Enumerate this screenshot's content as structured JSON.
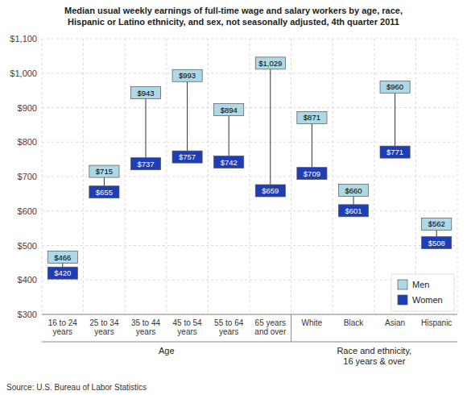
{
  "chart_data": {
    "type": "dumbbell",
    "title": "Median usual weekly earnings of full-time wage and salary workers by age, race,\nHispanic or Latino ethnicity, and sex, not seasonally adjusted, 4th quarter 2011",
    "categories": [
      "16 to 24\nyears",
      "25 to 34\nyears",
      "35 to 44\nyears",
      "45 to 54\nyears",
      "55 to 64\nyears",
      "65 years\nand over",
      "White",
      "Black",
      "Asian",
      "Hispanic"
    ],
    "groups": [
      {
        "label": "Age",
        "size": 6
      },
      {
        "label": "Race and ethnicity,\n16 years & over",
        "size": 4
      }
    ],
    "series": [
      {
        "name": "Men",
        "color": "#add8e6",
        "values": [
          466,
          715,
          943,
          993,
          894,
          1029,
          871,
          660,
          960,
          562
        ],
        "value_labels": [
          "$466",
          "$715",
          "$943",
          "$993",
          "$894",
          "$1,029",
          "$871",
          "$660",
          "$960",
          "$562"
        ]
      },
      {
        "name": "Women",
        "color": "#1f3db5",
        "values": [
          420,
          655,
          737,
          757,
          742,
          659,
          709,
          601,
          771,
          508
        ],
        "value_labels": [
          "$420",
          "$655",
          "$737",
          "$757",
          "$742",
          "$659",
          "$709",
          "$601",
          "$771",
          "$508"
        ]
      }
    ],
    "ylim": [
      300,
      1100
    ],
    "yticks": [
      {
        "value": 300,
        "label": "$300"
      },
      {
        "value": 400,
        "label": "$400"
      },
      {
        "value": 500,
        "label": "$500"
      },
      {
        "value": 600,
        "label": "$600"
      },
      {
        "value": 700,
        "label": "$700"
      },
      {
        "value": 800,
        "label": "$800"
      },
      {
        "value": 900,
        "label": "$900"
      },
      {
        "value": 1000,
        "label": "$1,000"
      },
      {
        "value": 1100,
        "label": "$1,100"
      }
    ],
    "grid": true,
    "legend": "lower right",
    "data_labels": true,
    "source": "Source: U.S. Bureau of Labor Statistics"
  }
}
